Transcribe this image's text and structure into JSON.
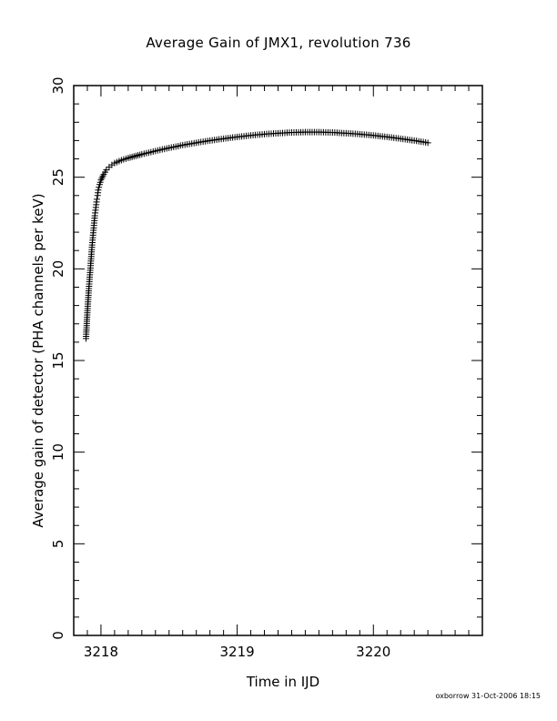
{
  "chart_data": {
    "type": "scatter",
    "title": "Average Gain of JMX1, revolution 736",
    "xlabel": "Time in IJD",
    "ylabel": "Average gain of detector (PHA channels per keV)",
    "xlim": [
      3217.8,
      3220.8
    ],
    "ylim": [
      0,
      30
    ],
    "x_ticks": [
      3218,
      3219,
      3220
    ],
    "y_ticks": [
      0,
      5,
      10,
      15,
      20,
      25,
      30
    ],
    "marker": "plus",
    "marker_color": "#000000",
    "grid": false,
    "series": [
      {
        "points": [
          [
            3217.89,
            16.2
          ],
          [
            3217.895,
            16.9
          ],
          [
            3217.9,
            17.6
          ],
          [
            3217.905,
            18.2
          ],
          [
            3217.91,
            18.8
          ],
          [
            3217.915,
            19.3
          ],
          [
            3217.92,
            19.8
          ],
          [
            3217.925,
            20.3
          ],
          [
            3217.93,
            20.8
          ],
          [
            3217.935,
            21.3
          ],
          [
            3217.94,
            21.7
          ],
          [
            3217.945,
            22.1
          ],
          [
            3217.95,
            22.5
          ],
          [
            3217.955,
            22.9
          ],
          [
            3217.96,
            23.2
          ],
          [
            3217.965,
            23.5
          ],
          [
            3217.97,
            23.8
          ],
          [
            3217.975,
            24.0
          ],
          [
            3217.98,
            24.3
          ],
          [
            3217.99,
            24.6
          ],
          [
            3218.0,
            24.85
          ],
          [
            3218.02,
            25.15
          ],
          [
            3218.04,
            25.4
          ],
          [
            3218.06,
            25.55
          ],
          [
            3218.08,
            25.67
          ],
          [
            3218.1,
            25.77
          ],
          [
            3218.15,
            25.93
          ],
          [
            3218.2,
            26.05
          ],
          [
            3218.3,
            26.25
          ],
          [
            3218.4,
            26.43
          ],
          [
            3218.5,
            26.6
          ],
          [
            3218.6,
            26.75
          ],
          [
            3218.7,
            26.88
          ],
          [
            3218.8,
            27.0
          ],
          [
            3218.9,
            27.1
          ],
          [
            3219.0,
            27.2
          ],
          [
            3219.1,
            27.28
          ],
          [
            3219.2,
            27.35
          ],
          [
            3219.3,
            27.4
          ],
          [
            3219.4,
            27.44
          ],
          [
            3219.5,
            27.46
          ],
          [
            3219.6,
            27.46
          ],
          [
            3219.7,
            27.44
          ],
          [
            3219.8,
            27.4
          ],
          [
            3219.9,
            27.35
          ],
          [
            3220.0,
            27.28
          ],
          [
            3220.1,
            27.2
          ],
          [
            3220.2,
            27.1
          ],
          [
            3220.3,
            27.0
          ],
          [
            3220.4,
            26.88
          ]
        ]
      }
    ]
  },
  "footer_text": "oxborrow 31-Oct-2006 18:15"
}
